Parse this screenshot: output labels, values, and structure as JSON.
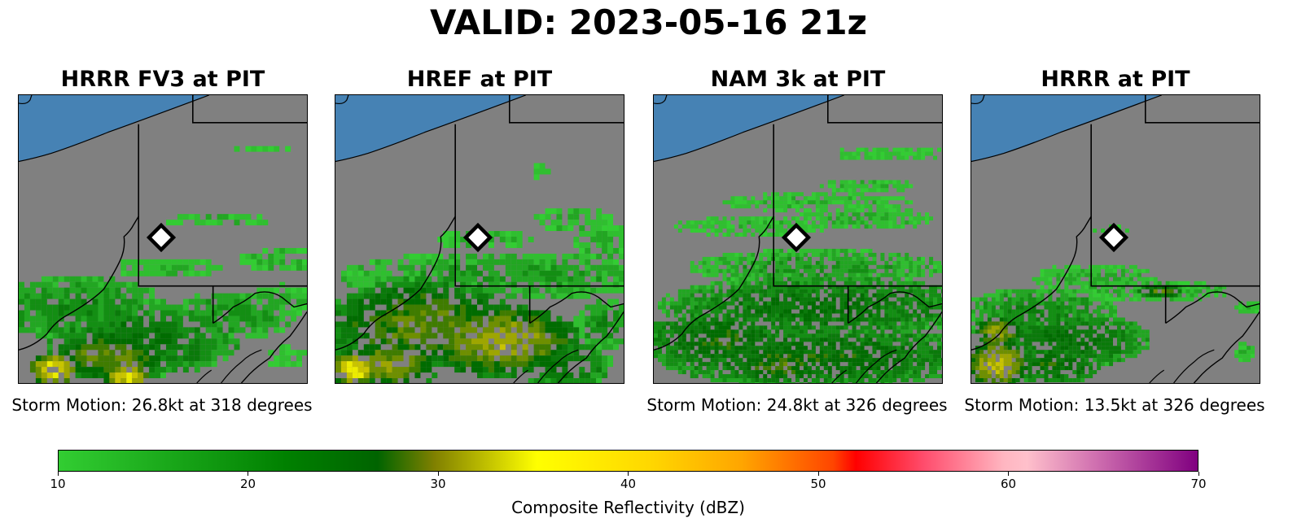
{
  "title": "VALID: 2023-05-16 21z",
  "panels": [
    {
      "title": "HRRR FV3 at PIT",
      "caption": "Storm Motion: 26.8kt at 318 degrees"
    },
    {
      "title": "HREF at PIT",
      "caption": ""
    },
    {
      "title": "NAM 3k at PIT",
      "caption": "Storm Motion: 24.8kt at 326 degrees"
    },
    {
      "title": "HRRR at PIT",
      "caption": "Storm Motion: 13.5kt at 326 degrees"
    }
  ],
  "colorbar": {
    "label": "Composite Reflectivity (dBZ)",
    "ticks": [
      "10",
      "20",
      "30",
      "40",
      "50",
      "60",
      "70"
    ],
    "range": [
      10,
      70
    ]
  },
  "colors": {
    "land": "#808080",
    "water": "#4682b4",
    "marker_fill": "#ffffff",
    "marker_stroke": "#000000"
  }
}
